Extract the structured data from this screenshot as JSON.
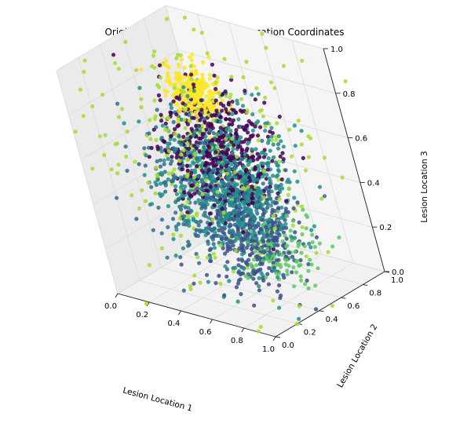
{
  "chart_data": {
    "type": "scatter",
    "title": "Original Scatterplot of Lesion Location Coordinates",
    "xlabel": "Lesion Location 1",
    "ylabel": "Lesion Location 2",
    "zlabel": "Lesion Location 3",
    "xlim": [
      0,
      1
    ],
    "ylim": [
      0,
      1
    ],
    "zlim": [
      0,
      1
    ],
    "x_ticks": [
      "0.0",
      "0.2",
      "0.4",
      "0.6",
      "0.8",
      "1.0"
    ],
    "y_ticks": [
      "0.0",
      "0.2",
      "0.4",
      "0.6",
      "0.8",
      "1.0"
    ],
    "z_ticks": [
      "0.0",
      "0.2",
      "0.4",
      "0.6",
      "0.8",
      "1.0"
    ],
    "grid": true,
    "projection": "3d",
    "cluster_colors": [
      "#fde725",
      "#3b528b",
      "#21918c",
      "#440154",
      "#a8db34",
      "#2d708e",
      "#5ec962"
    ],
    "clusters": [
      {
        "color_index": 0,
        "center": [
          0.42,
          0.55,
          0.82
        ],
        "spread": [
          0.07,
          0.06,
          0.06
        ],
        "count": 260
      },
      {
        "color_index": 1,
        "center": [
          0.55,
          0.55,
          0.22
        ],
        "spread": [
          0.12,
          0.12,
          0.12
        ],
        "count": 420
      },
      {
        "color_index": 2,
        "center": [
          0.55,
          0.5,
          0.45
        ],
        "spread": [
          0.16,
          0.16,
          0.16
        ],
        "count": 650
      },
      {
        "color_index": 3,
        "center": [
          0.52,
          0.5,
          0.6
        ],
        "spread": [
          0.14,
          0.14,
          0.14
        ],
        "count": 450
      },
      {
        "color_index": 4,
        "center": [
          0.45,
          0.5,
          0.55
        ],
        "spread": [
          0.26,
          0.26,
          0.26
        ],
        "count": 320
      },
      {
        "color_index": 5,
        "center": [
          0.4,
          0.45,
          0.4
        ],
        "spread": [
          0.15,
          0.15,
          0.15
        ],
        "count": 300
      },
      {
        "color_index": 6,
        "center": [
          0.7,
          0.6,
          0.15
        ],
        "spread": [
          0.1,
          0.1,
          0.08
        ],
        "count": 120
      }
    ]
  }
}
